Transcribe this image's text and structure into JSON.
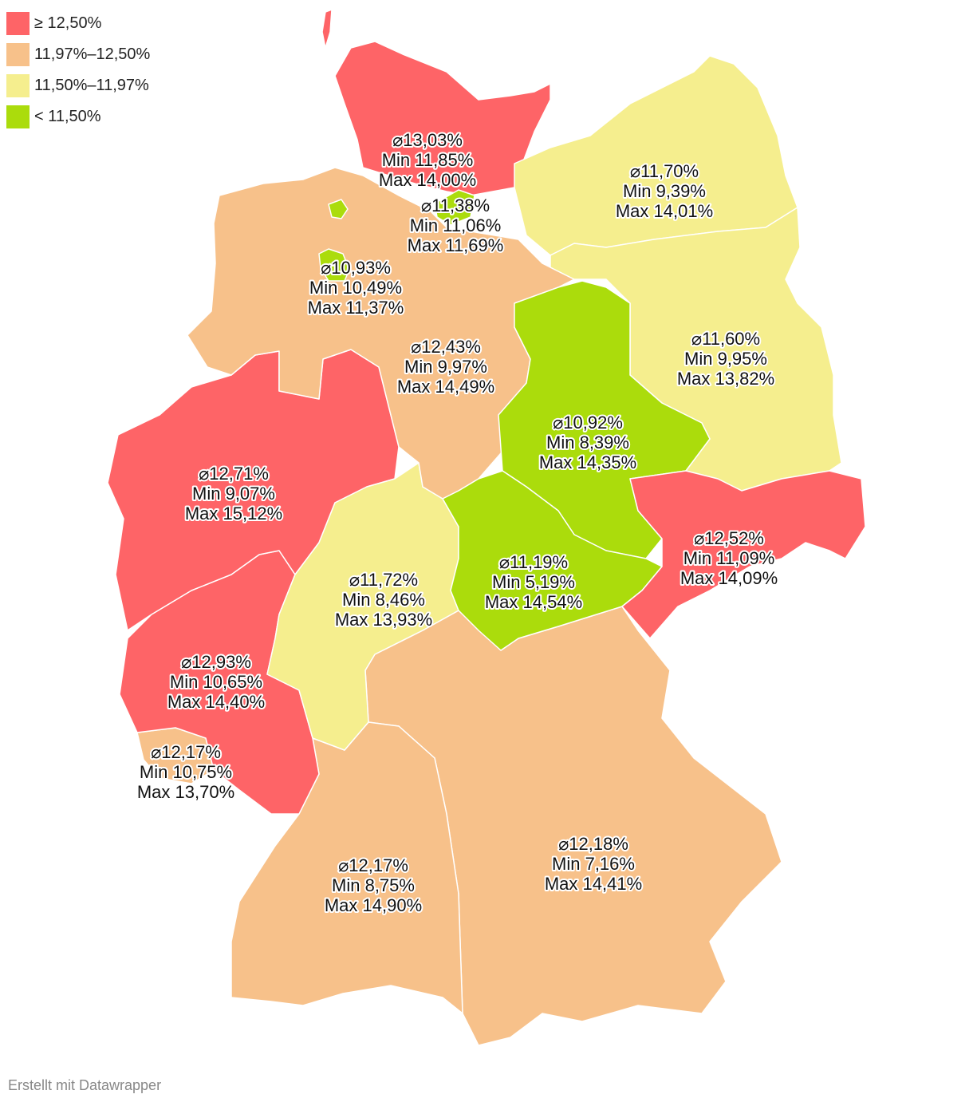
{
  "legend": [
    {
      "label": "≥ 12,50%",
      "color": "#fe6467"
    },
    {
      "label": "11,97%–12,50%",
      "color": "#f7c18a"
    },
    {
      "label": "11,50%–11,97%",
      "color": "#f5ee8e"
    },
    {
      "label": "< 11,50%",
      "color": "#abdc0c"
    }
  ],
  "states": {
    "sh": {
      "avg": "⌀13,03%",
      "min": "Min 11,85%",
      "max": "Max 14,00%",
      "color": "#fe6467"
    },
    "hh": {
      "avg": "⌀11,38%",
      "min": "Min 11,06%",
      "max": "Max 11,69%",
      "color": "#abdc0c"
    },
    "mv": {
      "avg": "⌀11,70%",
      "min": "Min 9,39%",
      "max": "Max 14,01%",
      "color": "#f5ee8e"
    },
    "hb": {
      "avg": "⌀10,93%",
      "min": "Min 10,49%",
      "max": "Max 11,37%",
      "color": "#abdc0c"
    },
    "ni": {
      "avg": "⌀12,43%",
      "min": "Min 9,97%",
      "max": "Max 14,49%",
      "color": "#f7c18a"
    },
    "bb": {
      "avg": "⌀11,60%",
      "min": "Min 9,95%",
      "max": "Max 13,82%",
      "color": "#f5ee8e"
    },
    "st": {
      "avg": "⌀10,92%",
      "min": "Min 8,39%",
      "max": "Max 14,35%",
      "color": "#abdc0c"
    },
    "nw": {
      "avg": "⌀12,71%",
      "min": "Min 9,07%",
      "max": "Max 15,12%",
      "color": "#fe6467"
    },
    "sn": {
      "avg": "⌀12,52%",
      "min": "Min 11,09%",
      "max": "Max 14,09%",
      "color": "#fe6467"
    },
    "th": {
      "avg": "⌀11,19%",
      "min": "Min 5,19%",
      "max": "Max 14,54%",
      "color": "#abdc0c"
    },
    "he": {
      "avg": "⌀11,72%",
      "min": "Min 8,46%",
      "max": "Max 13,93%",
      "color": "#f5ee8e"
    },
    "rp": {
      "avg": "⌀12,93%",
      "min": "Min 10,65%",
      "max": "Max 14,40%",
      "color": "#fe6467"
    },
    "sl": {
      "avg": "⌀12,17%",
      "min": "Min 10,75%",
      "max": "Max 13,70%",
      "color": "#f7c18a"
    },
    "bw": {
      "avg": "⌀12,17%",
      "min": "Min 8,75%",
      "max": "Max 14,90%",
      "color": "#f7c18a"
    },
    "by": {
      "avg": "⌀12,18%",
      "min": "Min 7,16%",
      "max": "Max 14,41%",
      "color": "#f7c18a"
    }
  },
  "credit": "Erstellt mit Datawrapper"
}
